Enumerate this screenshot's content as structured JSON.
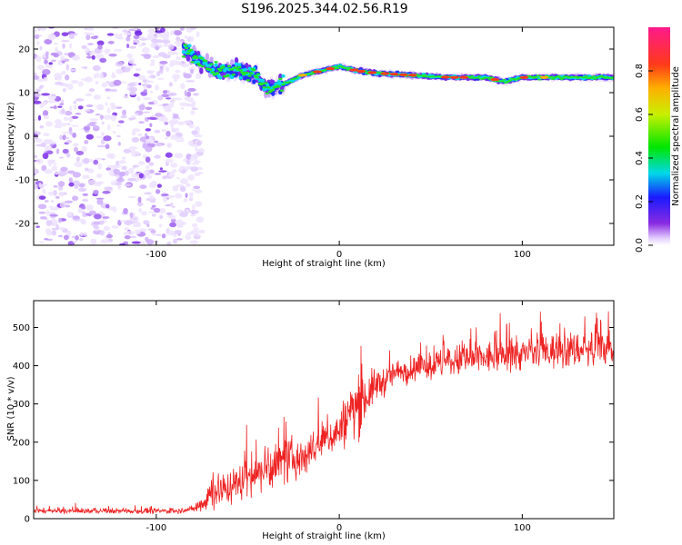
{
  "title": "S196.2025.344.02.56.R19",
  "chart_data": [
    {
      "type": "heatmap",
      "xlabel": "Height of straight line (km)",
      "ylabel": "Frequency (Hz)",
      "xlim": [
        -167,
        150
      ],
      "ylim": [
        -25,
        25
      ],
      "xticks": [
        -100,
        0,
        100
      ],
      "yticks": [
        -20,
        -10,
        0,
        10,
        20
      ],
      "colorbar": {
        "label": "Normalized spectral amplitude",
        "range": [
          0,
          1
        ],
        "ticks": [
          "0.0",
          "0.2",
          "0.4",
          "0.6",
          "0.8"
        ]
      },
      "tone": {
        "x": [
          -85,
          -75,
          -65,
          -55,
          -45,
          -40,
          -30,
          -20,
          -10,
          0,
          10,
          20,
          40,
          60,
          80,
          90,
          100,
          120,
          150
        ],
        "freq": [
          20,
          17,
          15,
          15,
          14,
          11,
          12,
          14,
          15,
          16,
          15,
          14.5,
          14,
          13.5,
          13.5,
          12.5,
          13.5,
          13.5,
          13.5
        ]
      },
      "noise_region_x": [
        -167,
        -80
      ]
    },
    {
      "type": "line",
      "xlabel": "Height of straight line (km)",
      "ylabel": "SNR (10 * v/v)",
      "xlim": [
        -167,
        150
      ],
      "ylim": [
        0,
        570
      ],
      "xticks": [
        -100,
        0,
        100
      ],
      "yticks": [
        0,
        100,
        200,
        300,
        400,
        500
      ],
      "color": "#ee2222",
      "envelope": {
        "x": [
          -167,
          -90,
          -80,
          -75,
          -70,
          -60,
          -50,
          -40,
          -30,
          -20,
          -10,
          0,
          5,
          10,
          15,
          20,
          25,
          30,
          40,
          50,
          60,
          80,
          100,
          120,
          150
        ],
        "mean": [
          20,
          20,
          25,
          40,
          70,
          80,
          110,
          130,
          150,
          160,
          200,
          230,
          270,
          300,
          320,
          350,
          360,
          380,
          390,
          400,
          410,
          420,
          430,
          440,
          445
        ],
        "spread": [
          8,
          8,
          10,
          30,
          60,
          50,
          60,
          70,
          70,
          60,
          60,
          60,
          90,
          100,
          70,
          50,
          45,
          40,
          40,
          45,
          50,
          50,
          50,
          55,
          55
        ]
      }
    }
  ]
}
